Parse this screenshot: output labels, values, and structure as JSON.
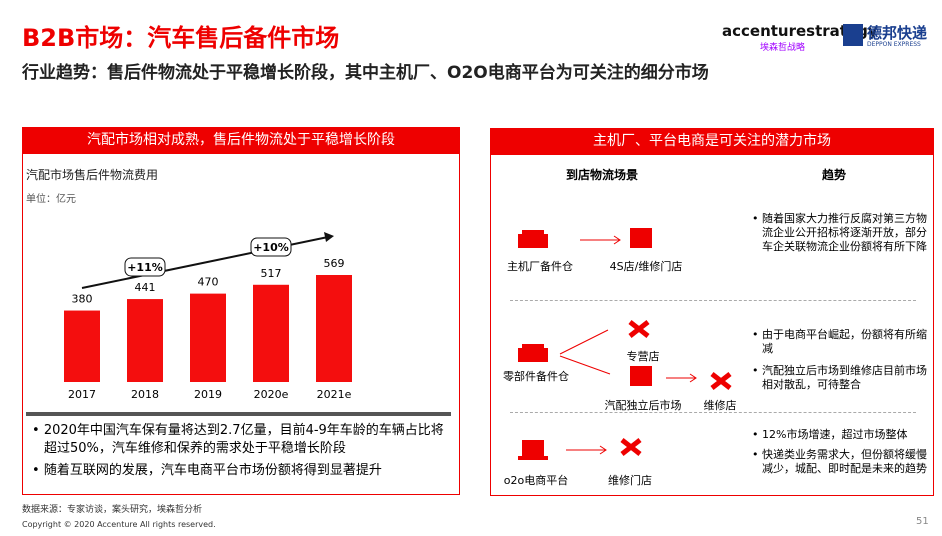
{
  "header": {
    "title": "B2B市场：汽车售后备件市场",
    "subtitle": "行业趋势：售后件物流处于平稳增长阶段，其中主机厂、O2O电商平台为可关注的细分市场",
    "logo_1": "accenturestrategy",
    "logo_1_sub": "埃森哲战略",
    "logo_2": "德邦快递",
    "logo_2_sub": "DEPPON EXPRESS"
  },
  "left_panel": {
    "heading": "汽配市场相对成熟，售后件物流处于平稳增长阶段",
    "bullets": [
      "2020年中国汽车保有量将达到2.7亿量，目前4-9年车龄的车辆占比将超过50%，汽车维修和保养的需求处于平稳增长阶段",
      "随着互联网的发展，汽车电商平台市场份额将得到显著提升"
    ]
  },
  "chart_data": {
    "type": "bar",
    "title": "汽配市场售后件物流费用",
    "subtitle": "单位：亿元",
    "categories": [
      "2017",
      "2018",
      "2019",
      "2020e",
      "2021e"
    ],
    "values": [
      380,
      441,
      470,
      517,
      569
    ],
    "color": "#f40e0e",
    "annotations": [
      "+11%",
      "+10%"
    ]
  },
  "right_panel": {
    "heading": "主机厂、平台电商是可关注的潜力市场",
    "col_1": "到店物流场景",
    "col_2": "趋势",
    "rows": [
      {
        "nodes": [
          "主机厂备件仓",
          "4S店/维修门店"
        ],
        "trends": [
          "随着国家大力推行反腐对第三方物流企业公开招标将逐渐开放，部分车企关联物流企业份额将有所下降"
        ]
      },
      {
        "nodes": [
          "零部件备件仓",
          "专营店",
          "汽配独立后市场",
          "维修店"
        ],
        "trends": [
          "由于电商平台崛起，份额将有所缩减",
          "汽配独立后市场到维修店目前市场相对散乱，可待整合"
        ]
      },
      {
        "nodes": [
          "o2o电商平台",
          "维修门店"
        ],
        "trends": [
          "12%市场增速，超过市场整体",
          "快递类业务需求大，但份额将缓慢减少，城配、即时配是未来的趋势"
        ]
      }
    ]
  },
  "footer": {
    "source": "数据来源：专家访谈，案头研究，埃森哲分析",
    "copyright": "Copyright © 2020 Accenture All rights reserved.",
    "page": "51"
  }
}
